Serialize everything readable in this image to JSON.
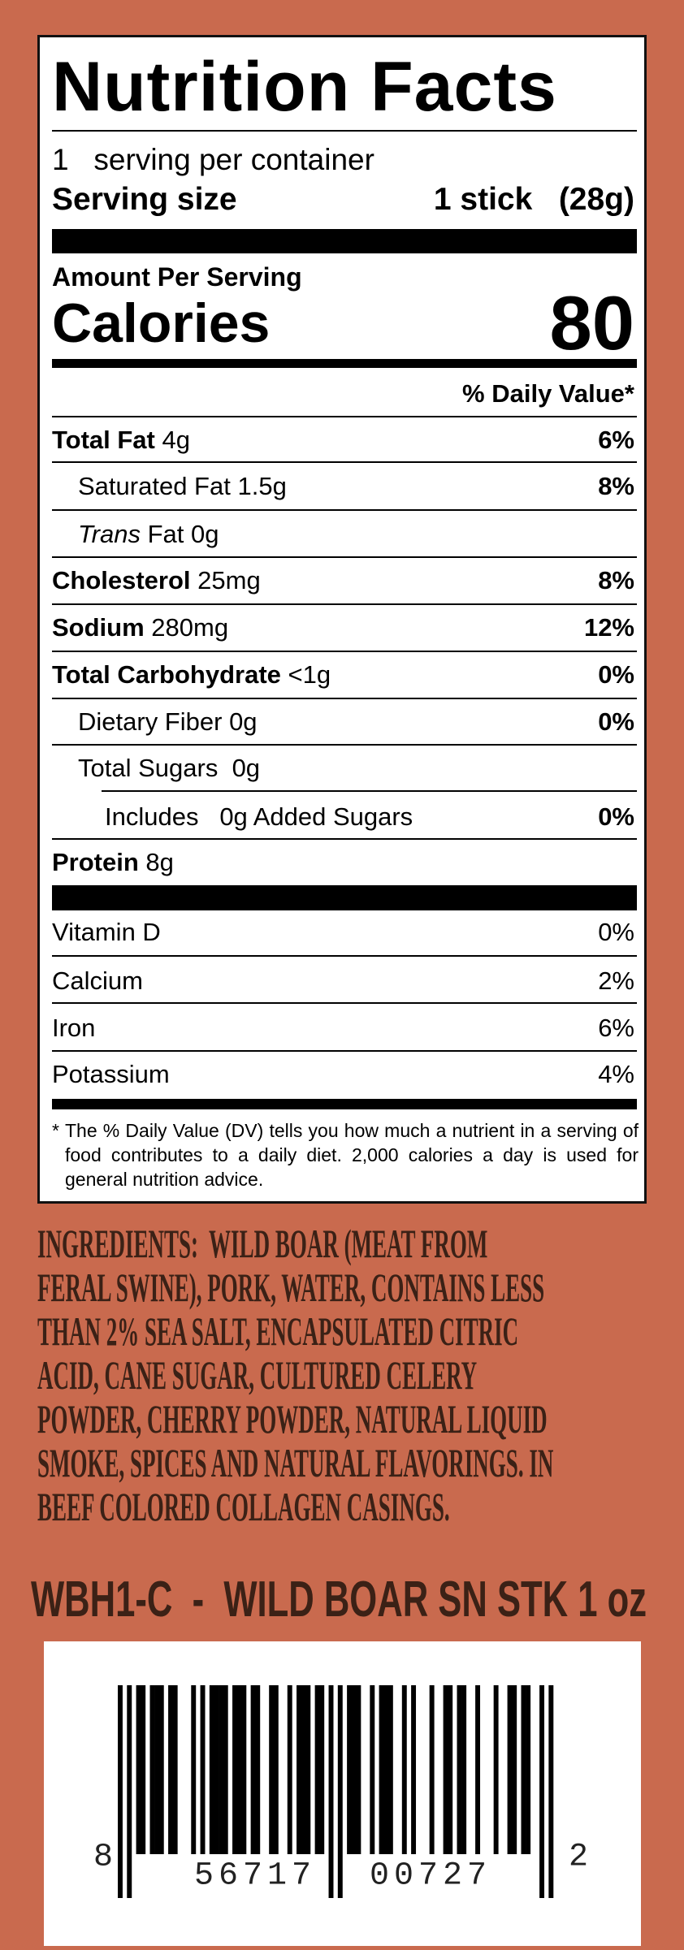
{
  "nutrition": {
    "title": "Nutrition Facts",
    "servings": "1",
    "servings_text": "serving per container",
    "serving_size_label": "Serving size",
    "serving_size_value": "1 stick",
    "serving_size_grams": "(28g)",
    "amount_per_serving": "Amount Per Serving",
    "calories_label": "Calories",
    "calories": "80",
    "daily_value_header": "% Daily Value*",
    "nutrients": [
      {
        "name": "Total Fat",
        "amount": "4g",
        "dv": "6%"
      },
      {
        "name": "Saturated Fat",
        "amount": "1.5g",
        "dv": "8%"
      },
      {
        "name_italic": "Trans",
        "name": "Fat",
        "amount": "0g"
      },
      {
        "name": "Cholesterol",
        "amount": "25mg",
        "dv": "8%"
      },
      {
        "name": "Sodium",
        "amount": "280mg",
        "dv": "12%"
      },
      {
        "name": "Total Carbohydrate",
        "amount": "<1g",
        "dv": "0%"
      },
      {
        "name": "Dietary Fiber",
        "amount": "0g",
        "dv": "0%"
      },
      {
        "name": "Total Sugars",
        "amount": "0g"
      },
      {
        "name": "Includes",
        "amount": "0g Added Sugars",
        "dv": "0%"
      },
      {
        "name": "Protein",
        "amount": "8g"
      }
    ],
    "vitamins": [
      {
        "name": "Vitamin D",
        "dv": "0%"
      },
      {
        "name": "Calcium",
        "dv": "2%"
      },
      {
        "name": "Iron",
        "dv": "6%"
      },
      {
        "name": "Potassium",
        "dv": "4%"
      }
    ],
    "footnote_mark": "*",
    "footnote": "The % Daily Value (DV) tells you how much a nutrient in a serving of food contributes to a daily diet. 2,000 calories a day is used for general nutrition advice."
  },
  "ingredients": [
    "INGREDIENTS:  WILD BOAR (MEAT FROM",
    "FERAL SWINE), PORK, WATER, CONTAINS LESS",
    "THAN 2% SEA SALT, ENCAPSULATED CITRIC",
    "ACID, CANE SUGAR, CULTURED CELERY",
    "POWDER, CHERRY POWDER, NATURAL LIQUID",
    "SMOKE, SPICES AND NATURAL FLAVORINGS. IN",
    "BEEF COLORED COLLAGEN CASINGS."
  ],
  "product_code": "WBH1-C  -  WILD BOAR SN STK 1 oz",
  "barcode": {
    "system_digit": "8",
    "left": "56717",
    "right": "00727",
    "check_digit": "2"
  }
}
